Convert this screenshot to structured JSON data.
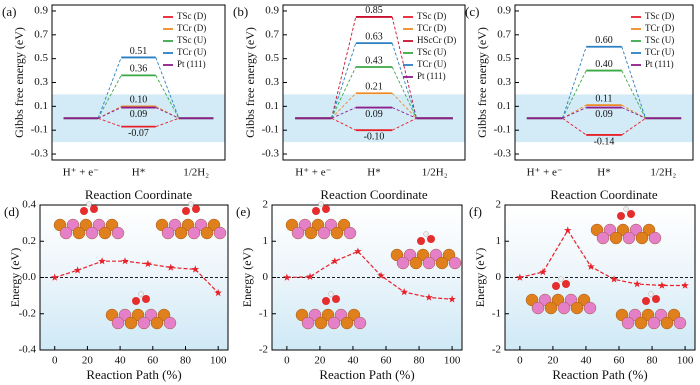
{
  "chart_data": [
    {
      "type": "energy-levels",
      "label": "(a)",
      "y_label": "Gibbs free energy (eV)",
      "x_label": "Reaction Coordinate",
      "categories": [
        "H⁺ + e⁻",
        "H*",
        "1/2H₂"
      ],
      "series": [
        {
          "name": "TSc (D)",
          "color": "#e8202a",
          "values": [
            0,
            -0.07,
            0
          ],
          "value_labels": [
            null,
            "-0.07",
            null
          ]
        },
        {
          "name": "TCr (D)",
          "color": "#f08a24",
          "values": [
            0,
            0.1,
            0
          ],
          "value_labels": [
            null,
            "0.10",
            null
          ]
        },
        {
          "name": "TSc (U)",
          "color": "#3aa845",
          "values": [
            0,
            0.36,
            0
          ],
          "value_labels": [
            null,
            "0.36",
            null
          ]
        },
        {
          "name": "TCr (U)",
          "color": "#2a7fc4",
          "values": [
            0,
            0.51,
            0
          ],
          "value_labels": [
            null,
            "0.51",
            null
          ]
        },
        {
          "name": "Pt (111)",
          "color": "#8e1f8e",
          "values": [
            0,
            0.09,
            0
          ],
          "value_labels": [
            null,
            "0.09",
            null
          ]
        }
      ],
      "ylim": [
        -0.35,
        0.95
      ],
      "yticks": [
        -0.3,
        -0.1,
        0.1,
        0.3,
        0.5,
        0.7,
        0.9
      ],
      "highlight": [
        -0.2,
        0.2
      ],
      "legend": "upper right"
    },
    {
      "type": "energy-levels",
      "label": "(b)",
      "y_label": "Gibbs free energy (eV)",
      "x_label": "Reaction Coordinate",
      "categories": [
        "H⁺ + e⁻",
        "H*",
        "1/2H₂"
      ],
      "series": [
        {
          "name": "TSc (D)",
          "color": "#e8202a",
          "values": [
            0,
            -0.1,
            0
          ],
          "value_labels": [
            null,
            "-0.10",
            null
          ]
        },
        {
          "name": "TCr (D)",
          "color": "#f08a24",
          "values": [
            0,
            0.21,
            0
          ],
          "value_labels": [
            null,
            "0.21",
            null
          ]
        },
        {
          "name": "HScCr (D)",
          "color": "#c8102e",
          "values": [
            0,
            0.85,
            0
          ],
          "value_labels": [
            null,
            "0.85",
            null
          ]
        },
        {
          "name": "TSc (U)",
          "color": "#3aa845",
          "values": [
            0,
            0.43,
            0
          ],
          "value_labels": [
            null,
            "0.43",
            null
          ]
        },
        {
          "name": "TCr (U)",
          "color": "#2a7fc4",
          "values": [
            0,
            0.63,
            0
          ],
          "value_labels": [
            null,
            "0.63",
            null
          ]
        },
        {
          "name": "Pt (111)",
          "color": "#8e1f8e",
          "values": [
            0,
            0.09,
            0
          ],
          "value_labels": [
            null,
            "0.09",
            null
          ]
        }
      ],
      "ylim": [
        -0.35,
        0.95
      ],
      "yticks": [
        -0.3,
        -0.1,
        0.1,
        0.3,
        0.5,
        0.7,
        0.9
      ],
      "highlight": [
        -0.2,
        0.2
      ],
      "legend": "upper right"
    },
    {
      "type": "energy-levels",
      "label": "(c)",
      "y_label": "Gibbs free energy (eV)",
      "x_label": "Reaction Coordinate",
      "categories": [
        "H⁺ + e⁻",
        "H*",
        "1/2H₂"
      ],
      "series": [
        {
          "name": "TSc (D)",
          "color": "#e8202a",
          "values": [
            0,
            -0.14,
            0
          ],
          "value_labels": [
            null,
            "-0.14",
            null
          ]
        },
        {
          "name": "TCr (D)",
          "color": "#f08a24",
          "values": [
            0,
            0.11,
            0
          ],
          "value_labels": [
            null,
            "0.11",
            null
          ]
        },
        {
          "name": "TSc (U)",
          "color": "#3aa845",
          "values": [
            0,
            0.4,
            0
          ],
          "value_labels": [
            null,
            "0.40",
            null
          ]
        },
        {
          "name": "TCr (U)",
          "color": "#2a7fc4",
          "values": [
            0,
            0.6,
            0
          ],
          "value_labels": [
            null,
            "0.60",
            null
          ]
        },
        {
          "name": "Pt (111)",
          "color": "#8e1f8e",
          "values": [
            0,
            0.09,
            0
          ],
          "value_labels": [
            null,
            "0.09",
            null
          ]
        }
      ],
      "ylim": [
        -0.35,
        0.95
      ],
      "yticks": [
        -0.3,
        -0.1,
        0.1,
        0.3,
        0.5,
        0.7,
        0.9
      ],
      "highlight": [
        -0.2,
        0.2
      ],
      "legend": "upper right"
    },
    {
      "type": "line",
      "label": "(d)",
      "y_label": "Energy (eV)",
      "x_label": "Reaction Path (%)",
      "x": [
        0,
        14,
        29,
        43,
        57,
        71,
        86,
        100
      ],
      "series": [
        {
          "color": "#e8202a",
          "values": [
            0,
            0.04,
            0.09,
            0.09,
            0.075,
            0.055,
            0.045,
            -0.085
          ]
        }
      ],
      "xlim": [
        -9,
        106
      ],
      "xticks": [
        0,
        20,
        40,
        60,
        80,
        100
      ],
      "ylim": [
        -0.4,
        0.4
      ],
      "yticks": [
        {
          "value": -0.4,
          "label": "-0.4"
        },
        {
          "value": -0.2,
          "label": "-0.2"
        },
        {
          "value": 0,
          "label": "0.0"
        },
        {
          "value": 0.2,
          "label": "0.2"
        },
        {
          "value": 0.4,
          "label": "0.4"
        }
      ],
      "reference_line": 0
    },
    {
      "type": "line",
      "label": "(e)",
      "y_label": "Energy (eV)",
      "x_label": "Reaction Path (%)",
      "x": [
        0,
        14,
        29,
        43,
        57,
        71,
        86,
        100
      ],
      "series": [
        {
          "color": "#e8202a",
          "values": [
            0,
            0.02,
            0.45,
            0.72,
            0.05,
            -0.4,
            -0.55,
            -0.6
          ]
        }
      ],
      "xlim": [
        -9,
        106
      ],
      "xticks": [
        0,
        20,
        40,
        60,
        80,
        100
      ],
      "ylim": [
        -2,
        2
      ],
      "yticks": [
        -2,
        -1,
        0,
        1,
        2
      ],
      "reference_line": 0
    },
    {
      "type": "line",
      "label": "(f)",
      "y_label": "Energy (eV)",
      "x_label": "Reaction Path (%)",
      "x": [
        0,
        14,
        29,
        43,
        57,
        71,
        86,
        100
      ],
      "series": [
        {
          "color": "#e8202a",
          "values": [
            0,
            0.15,
            1.3,
            0.3,
            -0.05,
            -0.18,
            -0.22,
            -0.22
          ]
        }
      ],
      "xlim": [
        -9,
        106
      ],
      "xticks": [
        0,
        20,
        40,
        60,
        80,
        100
      ],
      "ylim": [
        -2,
        2
      ],
      "yticks": [
        -2,
        -1,
        0,
        1,
        2
      ],
      "reference_line": 0
    }
  ]
}
